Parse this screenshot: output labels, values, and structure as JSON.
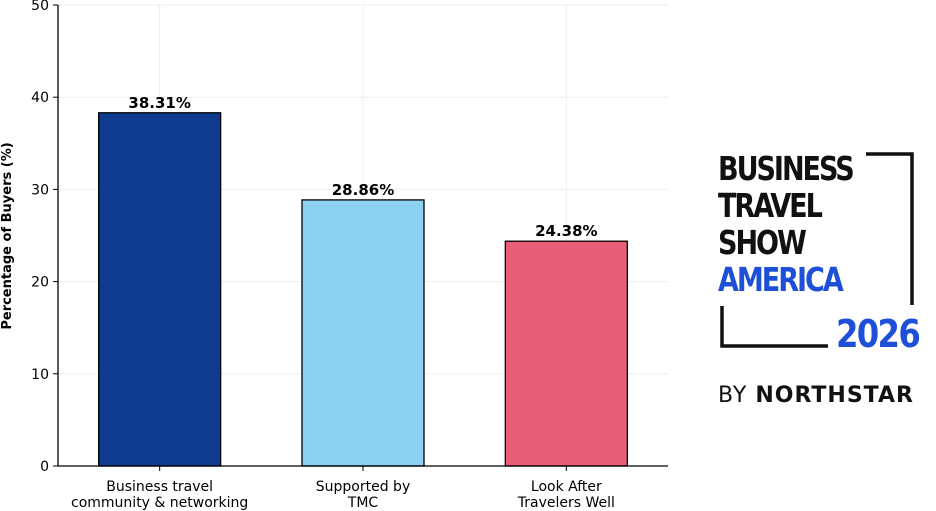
{
  "chart_data": {
    "type": "bar",
    "categories": [
      [
        "Business travel",
        "community & networking"
      ],
      [
        "Supported by",
        "TMC"
      ],
      [
        "Look After",
        "Travelers Well"
      ]
    ],
    "values": [
      38.31,
      28.86,
      24.38
    ],
    "data_labels": [
      "38.31%",
      "28.86%",
      "24.38%"
    ],
    "colors": [
      "#0e3b8f",
      "#8dd1f0",
      "#e85d77"
    ],
    "title": "",
    "xlabel": "",
    "ylabel": "Percentage of Buyers (%)",
    "ylim": [
      0,
      50
    ],
    "yticks": [
      "0",
      "10",
      "20",
      "30",
      "40",
      "50"
    ],
    "grid": true
  },
  "logo": {
    "line1": "BUSINESS",
    "line2": "TRAVEL",
    "line3": "SHOW",
    "line4": "AMERICA",
    "year": "2026",
    "by_prefix": "BY",
    "by_brand": "NORTHSTAR"
  }
}
